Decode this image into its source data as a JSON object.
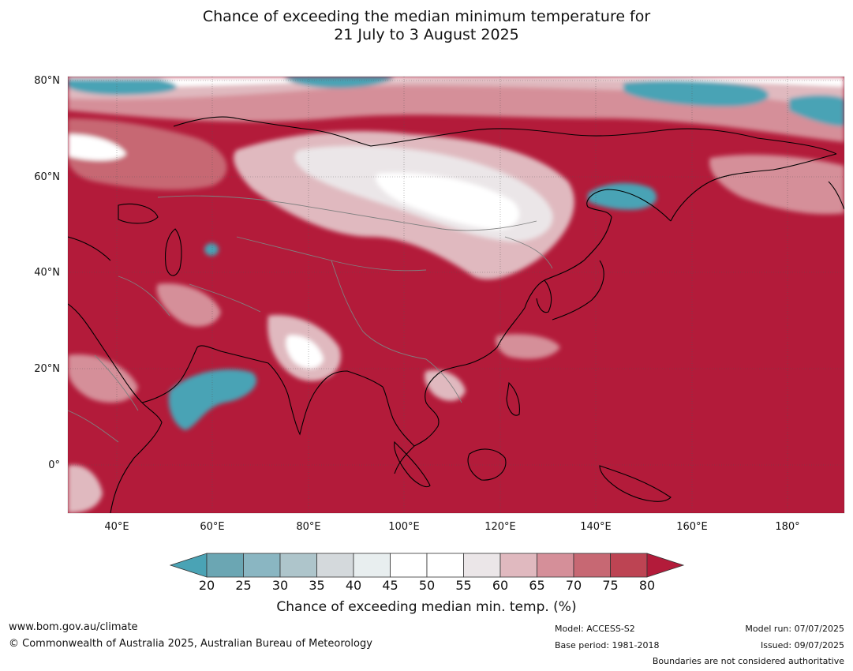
{
  "title": {
    "line1": "Chance of exceeding the median minimum temperature for",
    "line2": "21 July to 3 August 2025"
  },
  "map": {
    "lat_labels": [
      "80°N",
      "60°N",
      "40°N",
      "20°N",
      "0°"
    ],
    "lon_labels": [
      "40°E",
      "60°E",
      "80°E",
      "100°E",
      "120°E",
      "140°E",
      "160°E",
      "180°"
    ],
    "lon_range": [
      30,
      191
    ],
    "lat_range": [
      -10,
      80
    ],
    "background_color": "#b31b3a",
    "coast_color": "#000000",
    "border_color": "#808080",
    "grid": true
  },
  "colorbar": {
    "ticks": [
      "20",
      "25",
      "30",
      "35",
      "40",
      "45",
      "50",
      "55",
      "60",
      "65",
      "70",
      "75",
      "80"
    ],
    "colors": [
      "#6ba6b3",
      "#8ab6c2",
      "#aec5cb",
      "#d4d9dc",
      "#e8eeef",
      "#ffffff",
      "#ffffff",
      "#ebe6e8",
      "#e0b9bf",
      "#d58f99",
      "#c76873",
      "#bd4453"
    ],
    "under_color": "#4aa3b5",
    "over_color": "#b31b3a",
    "label": "Chance of exceeding median min. temp. (%)"
  },
  "footer": {
    "website": "www.bom.gov.au/climate",
    "copyright": "© Commonwealth of Australia 2025, Australian Bureau of Meteorology",
    "model": "Model: ACCESS-S2",
    "base_period": "Base period: 1981-2018",
    "model_run": "Model run: 07/07/2025",
    "issued": "Issued: 09/07/2025",
    "disclaimer": "Boundaries are not considered authoritative"
  }
}
